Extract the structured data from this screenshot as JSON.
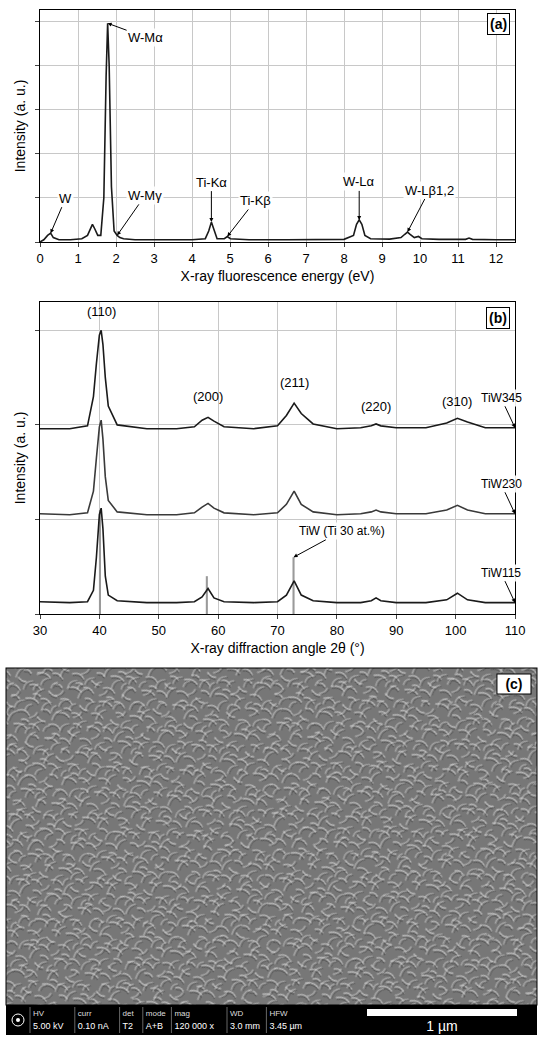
{
  "chart_data": [
    {
      "type": "line",
      "title": "(a)",
      "x_label": "X-ray fluorescence energy (eV)",
      "y_label": "Intensity (a. u.)",
      "x": [
        0.0,
        0.1,
        0.2,
        0.28,
        0.35,
        0.5,
        0.8,
        1.1,
        1.25,
        1.32,
        1.38,
        1.44,
        1.52,
        1.6,
        1.68,
        1.74,
        1.78,
        1.82,
        1.88,
        1.95,
        2.03,
        2.1,
        2.2,
        2.5,
        3.0,
        3.5,
        4.0,
        4.35,
        4.44,
        4.51,
        4.58,
        4.66,
        4.85,
        4.93,
        5.01,
        5.5,
        6.5,
        7.4,
        8.0,
        8.25,
        8.33,
        8.4,
        8.47,
        8.55,
        8.7,
        9.2,
        9.5,
        9.6,
        9.67,
        9.74,
        9.85,
        9.96,
        10.05,
        10.5,
        11.2,
        11.29,
        11.38,
        12.0,
        12.5
      ],
      "series": [
        {
          "color": "#1a1a1a",
          "values": [
            0.0,
            0.01,
            0.03,
            0.04,
            0.02,
            0.01,
            0.01,
            0.015,
            0.03,
            0.06,
            0.08,
            0.06,
            0.03,
            0.03,
            0.2,
            0.75,
            0.99,
            0.8,
            0.25,
            0.05,
            0.03,
            0.02,
            0.015,
            0.01,
            0.01,
            0.01,
            0.01,
            0.015,
            0.05,
            0.09,
            0.05,
            0.015,
            0.015,
            0.025,
            0.015,
            0.01,
            0.01,
            0.012,
            0.012,
            0.03,
            0.08,
            0.1,
            0.08,
            0.03,
            0.015,
            0.013,
            0.02,
            0.035,
            0.045,
            0.035,
            0.02,
            0.025,
            0.015,
            0.012,
            0.012,
            0.018,
            0.012,
            0.01,
            0.01
          ]
        }
      ],
      "annotations": [
        {
          "text": "W",
          "x": 0.28,
          "y": 0.04
        },
        {
          "text": "W-Mα",
          "x": 1.78,
          "y": 0.99
        },
        {
          "text": "W-Mγ",
          "x": 2.03,
          "y": 0.03
        },
        {
          "text": "Ti-Kα",
          "x": 4.51,
          "y": 0.09
        },
        {
          "text": "Ti-Kβ",
          "x": 4.93,
          "y": 0.025
        },
        {
          "text": "W-Lα",
          "x": 8.4,
          "y": 0.1
        },
        {
          "text": "W-Lβ1,2",
          "x": 9.67,
          "y": 0.045
        }
      ],
      "xlim": [
        0,
        12.5
      ],
      "xticks": [
        0,
        1,
        2,
        3,
        4,
        5,
        6,
        7,
        8,
        9,
        10,
        11,
        12
      ],
      "ylim": [
        0,
        1.05
      ],
      "yticks": [
        0,
        0.2,
        0.4,
        0.6,
        0.8,
        1.0
      ],
      "grid": true,
      "tick_labels": "x"
    },
    {
      "type": "line",
      "title": "(b)",
      "x_label": "X-ray diffraction angle 2θ (°)",
      "y_label": "Intensity (a. u.)",
      "x": [
        30,
        35,
        38,
        39,
        39.5,
        40,
        40.3,
        40.6,
        41,
        41.5,
        43,
        48,
        53,
        56,
        57.3,
        58.3,
        59.3,
        61,
        66,
        70,
        71.5,
        72.8,
        74,
        76,
        80,
        84,
        85.8,
        86.6,
        87.4,
        90,
        95,
        98.5,
        100.3,
        102,
        105,
        107,
        110
      ],
      "series": [
        {
          "name": "TiW345",
          "color": "#1a1a1a",
          "values": [
            1.96,
            1.96,
            1.99,
            2.3,
            2.65,
            2.95,
            3.0,
            2.85,
            2.5,
            2.2,
            2.0,
            1.96,
            1.96,
            1.98,
            2.05,
            2.08,
            2.04,
            1.98,
            1.96,
            1.99,
            2.1,
            2.23,
            2.12,
            2.01,
            1.96,
            1.97,
            1.99,
            2.01,
            1.99,
            1.97,
            1.97,
            2.02,
            2.07,
            2.03,
            1.97,
            1.97,
            1.97
          ]
        },
        {
          "name": "TiW230",
          "color": "#3a3a3a",
          "values": [
            1.06,
            1.05,
            1.07,
            1.3,
            1.65,
            1.98,
            2.05,
            1.85,
            1.45,
            1.2,
            1.08,
            1.05,
            1.05,
            1.07,
            1.13,
            1.17,
            1.12,
            1.07,
            1.05,
            1.07,
            1.16,
            1.3,
            1.16,
            1.08,
            1.05,
            1.06,
            1.08,
            1.1,
            1.08,
            1.06,
            1.06,
            1.1,
            1.15,
            1.1,
            1.06,
            1.06,
            1.06
          ]
        },
        {
          "name": "TiW115",
          "color": "#1a1a1a",
          "values": [
            0.13,
            0.12,
            0.13,
            0.25,
            0.6,
            1.05,
            1.12,
            0.9,
            0.4,
            0.2,
            0.14,
            0.12,
            0.12,
            0.13,
            0.18,
            0.27,
            0.17,
            0.13,
            0.12,
            0.13,
            0.2,
            0.35,
            0.2,
            0.14,
            0.12,
            0.12,
            0.14,
            0.17,
            0.14,
            0.12,
            0.12,
            0.15,
            0.22,
            0.15,
            0.12,
            0.12,
            0.12
          ]
        },
        {
          "name": "TiW (Ti 30 at.%)",
          "type": "bar",
          "color": "#9a9a9a",
          "x": [
            40.1,
            58.1,
            72.7
          ],
          "values": [
            1.1,
            0.4,
            0.6
          ]
        }
      ],
      "annotations": [
        {
          "text": "(110)",
          "x": 40.3,
          "y": 3.2
        },
        {
          "text": "(200)",
          "x": 58.3,
          "y": 2.3
        },
        {
          "text": "(211)",
          "x": 72.8,
          "y": 2.45
        },
        {
          "text": "(220)",
          "x": 86.6,
          "y": 2.2
        },
        {
          "text": "(310)",
          "x": 100.3,
          "y": 2.25
        }
      ],
      "xlim": [
        30,
        110
      ],
      "xticks": [
        30,
        40,
        50,
        60,
        70,
        80,
        90,
        100,
        110
      ],
      "ylim": [
        0,
        3.3
      ],
      "yticks": [
        0,
        1,
        2,
        3
      ],
      "grid": true,
      "tick_labels": "x"
    }
  ],
  "micrograph": {
    "title": "(c)",
    "scale_bar": "1 µm",
    "info": [
      {
        "name": "HV",
        "value": "5.00 kV"
      },
      {
        "name": "curr",
        "value": "0.10 nA"
      },
      {
        "name": "det",
        "value": "T2"
      },
      {
        "name": "mode",
        "value": "A+B"
      },
      {
        "name": "mag",
        "value": "120 000 x"
      },
      {
        "name": "WD",
        "value": "3.0 mm"
      },
      {
        "name": "HFW",
        "value": "3.45 µm"
      }
    ]
  }
}
